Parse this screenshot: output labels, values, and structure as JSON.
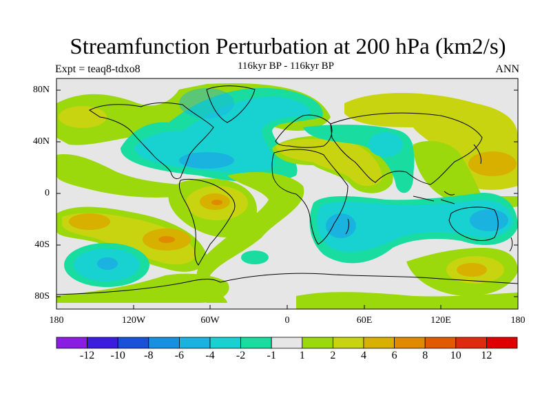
{
  "title": "Streamfunction Perturbation at 200 hPa (km2/s)",
  "experiment": "Expt = teaq8-tdxo8",
  "subtitle": "116kyr BP - 116kyr BP",
  "season": "ANN",
  "map": {
    "projection": "cylindrical equidistant",
    "lat_ticks": [
      "80N",
      "40N",
      "0",
      "40S",
      "80S"
    ],
    "lon_ticks": [
      "180",
      "120W",
      "60W",
      "0",
      "60E",
      "120E",
      "180"
    ]
  },
  "colorbar": {
    "labels": [
      "-12",
      "-10",
      "-8",
      "-6",
      "-4",
      "-2",
      "-1",
      "1",
      "2",
      "4",
      "6",
      "8",
      "10",
      "12"
    ],
    "colors": [
      "#8a1ee0",
      "#3b1de0",
      "#1a4fd8",
      "#1890e0",
      "#1ab3e0",
      "#18d2d2",
      "#18dca0",
      "#e6e6e6",
      "#9bd80c",
      "#c8d410",
      "#d8b000",
      "#e08a00",
      "#e05a00",
      "#e02a10",
      "#e00000"
    ]
  }
}
